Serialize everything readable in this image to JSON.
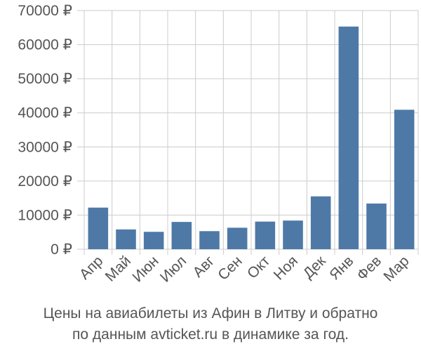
{
  "chart_data": {
    "type": "bar",
    "categories": [
      "Апр",
      "Май",
      "Июн",
      "Июл",
      "Авг",
      "Сен",
      "Окт",
      "Ноя",
      "Дек",
      "Янв",
      "Фев",
      "Мар"
    ],
    "values": [
      12200,
      5800,
      5100,
      8000,
      5300,
      6300,
      8100,
      8400,
      15500,
      65300,
      13400,
      40900
    ],
    "y_ticks": [
      "0 ₽",
      "10000 ₽",
      "20000 ₽",
      "30000 ₽",
      "40000 ₽",
      "50000 ₽",
      "60000 ₽",
      "70000 ₽"
    ],
    "y_tick_values": [
      0,
      10000,
      20000,
      30000,
      40000,
      50000,
      60000,
      70000
    ],
    "ylim": [
      0,
      70000
    ],
    "grid": true,
    "legend": "none",
    "colors": {
      "bar": "#4e79a7",
      "grid": "#cccccc",
      "text": "#555555"
    }
  },
  "caption": {
    "line1": "Цены на авиабилеты из Афин в Литву и обратно",
    "line2": "по данным avticket.ru в динамике за год."
  }
}
